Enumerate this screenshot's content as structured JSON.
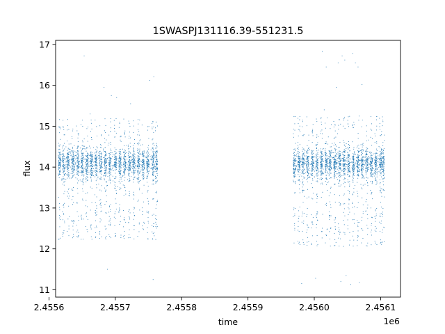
{
  "chart_data": {
    "type": "scatter",
    "title": "1SWASPJ131116.39-551231.5",
    "xlabel": "time",
    "ylabel": "flux",
    "x_offset_label": "1e6",
    "xlim": [
      2.45561,
      2.45613
    ],
    "ylim": [
      10.82,
      17.1
    ],
    "x_ticks": [
      2.4556,
      2.4557,
      2.4558,
      2.4559,
      2.456,
      2.4561
    ],
    "x_tick_labels": [
      "2.4556",
      "2.4557",
      "2.4558",
      "2.4559",
      "2.4560",
      "2.4561"
    ],
    "y_ticks": [
      11,
      12,
      13,
      14,
      15,
      16,
      17
    ],
    "y_tick_labels": [
      "11",
      "12",
      "13",
      "14",
      "15",
      "16",
      "17"
    ],
    "grid": false,
    "legend": "none",
    "series": [
      {
        "color": "#1f77b4",
        "marker": "point",
        "observing_seasons": [
          {
            "x_range": [
              2.455614,
              2.455763
            ],
            "y_core": [
              13.6,
              14.6
            ],
            "y_min": 11.3,
            "y_max": 16.7,
            "dense_columns": [
              2.455616,
              2.455622,
              2.455629,
              2.455636,
              2.455643,
              2.45565,
              2.455657,
              2.455664,
              2.455671,
              2.455678,
              2.455685,
              2.455692,
              2.4557,
              2.455707,
              2.455714,
              2.455721,
              2.455728,
              2.455735,
              2.455742,
              2.455749,
              2.455757,
              2.455762
            ]
          },
          {
            "x_range": [
              2.455968,
              2.456105
            ],
            "y_core": [
              13.6,
              14.6
            ],
            "y_min": 11.1,
            "y_max": 16.8,
            "dense_columns": [
              2.45597,
              2.455977,
              2.455983,
              2.45599,
              2.455997,
              2.456004,
              2.456011,
              2.456018,
              2.456024,
              2.456031,
              2.456038,
              2.456045,
              2.456052,
              2.456059,
              2.456066,
              2.456072,
              2.456079,
              2.456086,
              2.456093,
              2.4561,
              2.456104
            ]
          }
        ],
        "outliers": [
          [
            2.455653,
            16.72
          ],
          [
            2.455683,
            15.95
          ],
          [
            2.455694,
            15.75
          ],
          [
            2.455702,
            15.7
          ],
          [
            2.455723,
            15.55
          ],
          [
            2.455752,
            16.12
          ],
          [
            2.455758,
            16.21
          ],
          [
            2.455662,
            15.3
          ],
          [
            2.455688,
            11.5
          ],
          [
            2.455757,
            11.25
          ],
          [
            2.456012,
            16.83
          ],
          [
            2.456018,
            16.45
          ],
          [
            2.456036,
            16.55
          ],
          [
            2.456042,
            16.72
          ],
          [
            2.456046,
            16.62
          ],
          [
            2.456058,
            16.78
          ],
          [
            2.456062,
            16.55
          ],
          [
            2.456066,
            16.45
          ],
          [
            2.456072,
            16.02
          ],
          [
            2.456033,
            15.95
          ],
          [
            2.45604,
            11.2
          ],
          [
            2.456055,
            11.13
          ],
          [
            2.456048,
            11.35
          ],
          [
            2.456068,
            11.18
          ],
          [
            2.455981,
            11.15
          ],
          [
            2.456002,
            11.28
          ],
          [
            2.456015,
            15.4
          ]
        ]
      }
    ]
  }
}
